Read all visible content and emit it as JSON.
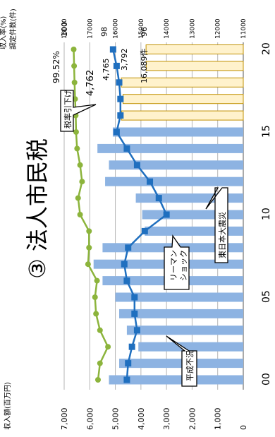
{
  "chart_data": {
    "type": "bar",
    "orientation": "rotated-90-ccw",
    "title": "③ 法人市民税",
    "categories": [
      "00",
      "01",
      "02",
      "03",
      "04",
      "05",
      "06",
      "07",
      "08",
      "09",
      "10",
      "11",
      "12",
      "13",
      "14",
      "15",
      "16",
      "17",
      "18",
      "19",
      "20"
    ],
    "x_tick_labels": [
      "00",
      "05",
      "10",
      "15",
      "20"
    ],
    "left_axis": {
      "label": "収入額(百万円)",
      "ticks": [
        "0",
        "1,000",
        "2,000",
        "3,000",
        "4,000",
        "5,000",
        "6,000",
        "7,000"
      ],
      "ylim": [
        0,
        7000
      ]
    },
    "right_axis_rate": {
      "label": "収入率(%)",
      "ticks": [
        "100",
        "98",
        "96"
      ],
      "ylim": [
        91,
        100
      ]
    },
    "right_axis_count": {
      "label": "調定件数(件)",
      "ticks": [
        "18000",
        "17000",
        "16000",
        "15000",
        "14000",
        "13000",
        "12000",
        "11000"
      ],
      "ylim": [
        11000,
        18000
      ]
    },
    "grid": true,
    "series": [
      {
        "kind": "bar",
        "axis": "left",
        "color": "#8db3e2",
        "values": [
          5250,
          4850,
          4100,
          4550,
          4850,
          5000,
          5500,
          5850,
          5500,
          3850,
          3950,
          4200,
          5400,
          5250,
          5700,
          5100,
          null,
          null,
          null,
          null,
          null
        ]
      },
      {
        "kind": "bar",
        "axis": "left",
        "color": "#fff2cc",
        "border": "#c09000",
        "values": [
          null,
          null,
          null,
          null,
          null,
          null,
          null,
          null,
          null,
          null,
          null,
          null,
          null,
          null,
          null,
          null,
          4762,
          4700,
          4765,
          3792,
          3800
        ]
      },
      {
        "kind": "line",
        "axis": "count",
        "color": "#1f6fbf",
        "marker": "square",
        "values": [
          15550,
          15500,
          15350,
          15150,
          15250,
          15250,
          15550,
          15650,
          15500,
          14850,
          14000,
          14300,
          14650,
          15150,
          15550,
          15950,
          15800,
          15800,
          15850,
          15950,
          16089
        ]
      },
      {
        "kind": "line",
        "axis": "rate",
        "color": "#8cb43c",
        "marker": "circle",
        "values": [
          98.3,
          98.2,
          97.8,
          98.2,
          98.4,
          98.45,
          98.35,
          98.8,
          98.75,
          98.75,
          99.2,
          99.3,
          99.1,
          99.2,
          99.35,
          99.4,
          99.42,
          99.45,
          99.48,
          99.5,
          99.52
        ]
      }
    ],
    "annotations": {
      "heisei_fukyo": "平成不況",
      "lehman_line1": "リーマン",
      "lehman_line2": "ショック",
      "shinsai": "東日本大震災",
      "zeiritsu": "税率引下げ",
      "rate_last": "99.52%",
      "bar_4762": "4,762",
      "bar_4765": "4,765",
      "bar_3792": "3,792",
      "count_last": "16,089件"
    }
  }
}
